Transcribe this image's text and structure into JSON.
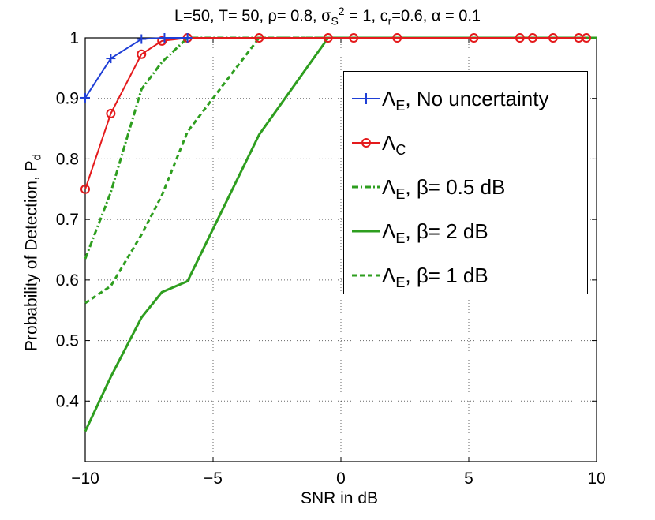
{
  "chart_data": {
    "type": "line",
    "title": {
      "prefix": "L=50, T= 50, ρ= 0.8, σ",
      "sigma_sub": "S",
      "sigma_sup": "2",
      "mid": " = 1, c",
      "c_sub": "r",
      "suffix": "=0.6, α = 0.1"
    },
    "xlabel": "SNR in dB",
    "ylabel": "Probability of Detection, P",
    "ylabel_sub": "d",
    "xlim": [
      -10,
      10
    ],
    "ylim": [
      0.3,
      1.0
    ],
    "xticks": [
      -10,
      -5,
      0,
      5,
      10
    ],
    "xtick_labels": [
      "−10",
      "−5",
      "0",
      "5",
      "10"
    ],
    "yticks": [
      0.4,
      0.5,
      0.6,
      0.7,
      0.8,
      0.9,
      1.0
    ],
    "ytick_labels": [
      "0.4",
      "0.5",
      "0.6",
      "0.7",
      "0.8",
      "0.9",
      "1"
    ],
    "grid": true,
    "legend_position": "top-right",
    "series": [
      {
        "name": "No uncertainty",
        "legend_symbol": "Λ",
        "legend_sub": "E",
        "legend_text": ", No uncertainty",
        "color": "#1f3fd6",
        "style": "solid",
        "marker": "plus",
        "x": [
          -10,
          -9,
          -7.8,
          -6.9,
          -6
        ],
        "y": [
          0.901,
          0.966,
          0.998,
          1.0,
          1.0
        ]
      },
      {
        "name": "Lambda C",
        "legend_symbol": "Λ",
        "legend_sub": "C",
        "legend_text": "",
        "color": "#e41a1c",
        "style": "solid",
        "marker": "circle",
        "x": [
          -10,
          -9,
          -7.8,
          -7,
          -6,
          -3.2,
          -0.5,
          0.5,
          2.2,
          5.2,
          7,
          7.5,
          8.3,
          9.3,
          9.6
        ],
        "y": [
          0.75,
          0.875,
          0.973,
          0.995,
          1.0,
          1.0,
          1.0,
          1.0,
          1.0,
          1.0,
          1.0,
          1.0,
          1.0,
          1.0,
          1.0
        ]
      },
      {
        "name": "beta 0.5 dB",
        "legend_symbol": "Λ",
        "legend_sub": "E",
        "legend_text": ", β= 0.5 dB",
        "color": "#2e9e1f",
        "style": "dashdot",
        "marker": "none",
        "x": [
          -10,
          -9,
          -7.8,
          -7,
          -6,
          -3.2,
          -0.5,
          10
        ],
        "y": [
          0.635,
          0.745,
          0.915,
          0.96,
          1.0,
          1.0,
          1.0,
          1.0
        ]
      },
      {
        "name": "beta 2 dB",
        "legend_symbol": "Λ",
        "legend_sub": "E",
        "legend_text": ", β= 2 dB",
        "color": "#2e9e1f",
        "style": "solid",
        "marker": "none",
        "x": [
          -10,
          -9,
          -7.8,
          -7,
          -6,
          -3.2,
          -0.5,
          10
        ],
        "y": [
          0.35,
          0.44,
          0.538,
          0.58,
          0.598,
          0.84,
          1.0,
          1.0
        ]
      },
      {
        "name": "beta 1 dB",
        "legend_symbol": "Λ",
        "legend_sub": "E",
        "legend_text": ", β= 1 dB",
        "color": "#2e9e1f",
        "style": "dashed",
        "marker": "none",
        "x": [
          -10,
          -9,
          -7.8,
          -7,
          -6,
          -3.2,
          -0.5,
          10
        ],
        "y": [
          0.562,
          0.59,
          0.675,
          0.74,
          0.845,
          1.0,
          1.0,
          1.0
        ]
      }
    ]
  }
}
